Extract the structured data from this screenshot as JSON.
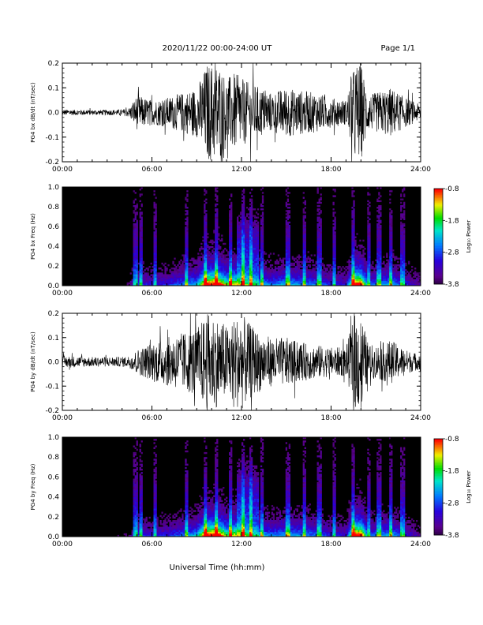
{
  "header": {
    "title": "2020/11/22  00:00-24:00 UT",
    "page": "Page 1/1"
  },
  "xlabel": "Universal Time (hh:mm)",
  "colorbar": {
    "label": "Log₁₀ Power",
    "ticks": [
      "-0.8",
      "-1.8",
      "-2.8",
      "-3.8"
    ]
  },
  "chart_data": [
    {
      "type": "line",
      "ylabel": "PG4 bx dB/dt (nT/sec)",
      "xlim": [
        0,
        24
      ],
      "ylim": [
        -0.2,
        0.2
      ],
      "x_ticks": [
        "00:00",
        "06:00",
        "12:00",
        "18:00",
        "24:00"
      ],
      "y_ticks": [
        "-0.2",
        "-0.1",
        "0.0",
        "0.1",
        "0.2"
      ],
      "envelope": {
        "hours": [
          0,
          2,
          4,
          4.5,
          5,
          6,
          7,
          8,
          9,
          9.7,
          10,
          10.5,
          11,
          11.5,
          12,
          12.5,
          13,
          14,
          15,
          16,
          17,
          18,
          19,
          19.6,
          20,
          20.5,
          21,
          22,
          23,
          24
        ],
        "amplitude": [
          0.012,
          0.01,
          0.012,
          0.02,
          0.07,
          0.05,
          0.06,
          0.08,
          0.1,
          0.2,
          0.2,
          0.2,
          0.14,
          0.16,
          0.14,
          0.12,
          0.11,
          0.08,
          0.1,
          0.09,
          0.08,
          0.06,
          0.05,
          0.2,
          0.2,
          0.07,
          0.08,
          0.1,
          0.06,
          0.03
        ]
      },
      "color": "#000000"
    },
    {
      "type": "heatmap",
      "ylabel": "PG4 bx Freq (Hz)",
      "xlim": [
        0,
        24
      ],
      "ylim": [
        0,
        1.0
      ],
      "x_ticks": [
        "00:00",
        "06:00",
        "12:00",
        "18:00",
        "24:00"
      ],
      "y_ticks": [
        "0.0",
        "0.2",
        "0.4",
        "0.6",
        "0.8",
        "1.0"
      ],
      "colorbar_range": [
        -3.8,
        -0.8
      ]
    },
    {
      "type": "line",
      "ylabel": "PG4 by dB/dt (nT/sec)",
      "xlim": [
        0,
        24
      ],
      "ylim": [
        -0.2,
        0.2
      ],
      "x_ticks": [
        "00:00",
        "06:00",
        "12:00",
        "18:00",
        "24:00"
      ],
      "y_ticks": [
        "-0.2",
        "-0.1",
        "0.0",
        "0.1",
        "0.2"
      ],
      "envelope": {
        "hours": [
          0,
          2,
          4,
          4.5,
          5,
          6,
          7,
          8,
          9,
          9.7,
          10,
          10.5,
          11,
          11.5,
          12,
          12.5,
          13,
          14,
          15,
          16,
          17,
          18,
          19,
          19.6,
          20,
          20.5,
          21,
          22,
          23,
          24
        ],
        "amplitude": [
          0.025,
          0.02,
          0.02,
          0.025,
          0.05,
          0.08,
          0.1,
          0.12,
          0.14,
          0.2,
          0.2,
          0.18,
          0.15,
          0.18,
          0.2,
          0.16,
          0.13,
          0.1,
          0.1,
          0.08,
          0.07,
          0.06,
          0.06,
          0.2,
          0.2,
          0.07,
          0.07,
          0.09,
          0.05,
          0.03
        ]
      },
      "color": "#000000"
    },
    {
      "type": "heatmap",
      "ylabel": "PG4 by Freq (Hz)",
      "xlim": [
        0,
        24
      ],
      "ylim": [
        0,
        1.0
      ],
      "x_ticks": [
        "00:00",
        "06:00",
        "12:00",
        "18:00",
        "24:00"
      ],
      "y_ticks": [
        "0.0",
        "0.2",
        "0.4",
        "0.6",
        "0.8",
        "1.0"
      ],
      "colorbar_range": [
        -3.8,
        -0.8
      ]
    }
  ]
}
